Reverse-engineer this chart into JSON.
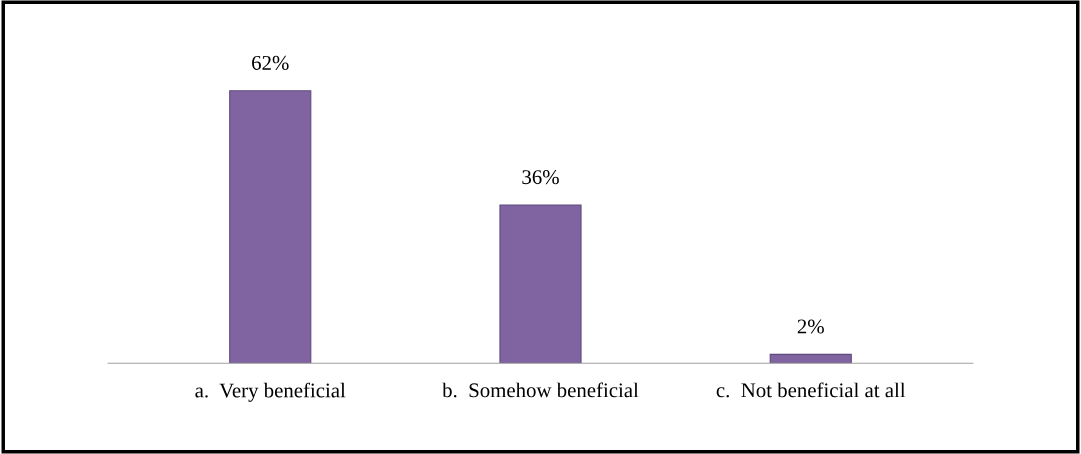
{
  "chart_data": {
    "type": "bar",
    "categories": [
      "a.  Very beneficial",
      "b.  Somehow beneficial",
      "c.  Not beneficial at all"
    ],
    "values": [
      62,
      36,
      2
    ],
    "color": "#8064a2",
    "data_labels": true,
    "value_labels": [
      "62%",
      "36%",
      "2%"
    ],
    "grid": false,
    "legend": false
  }
}
